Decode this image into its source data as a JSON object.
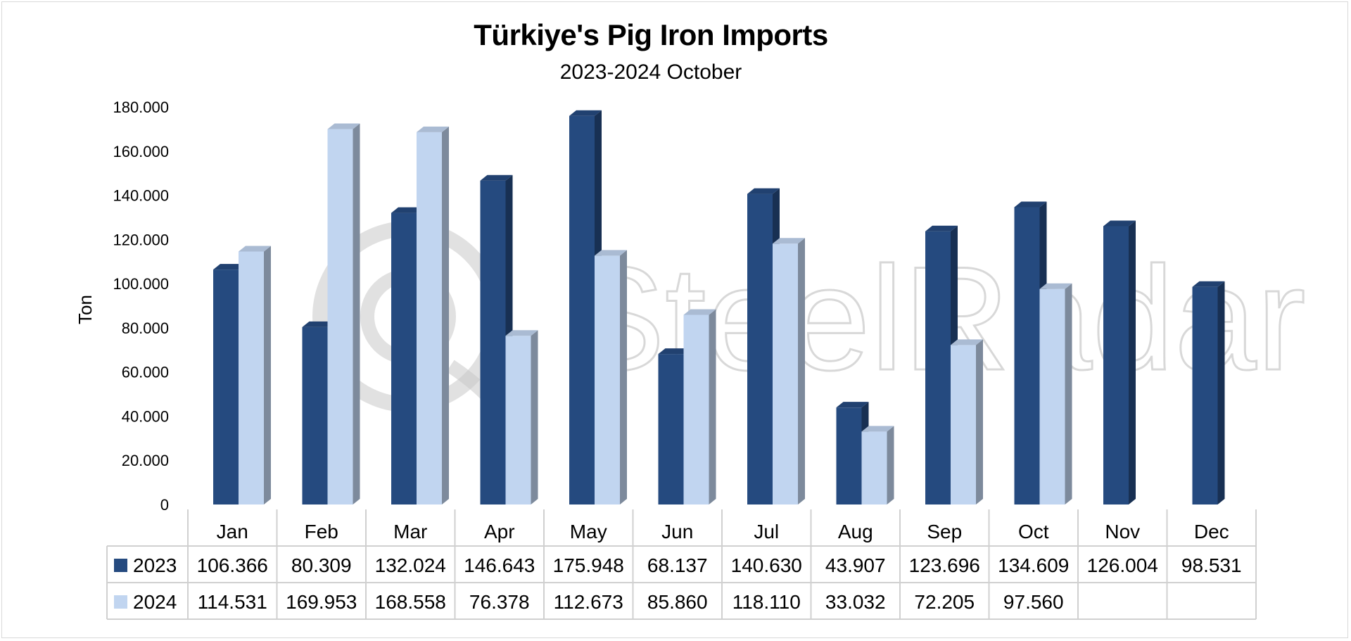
{
  "chart_data": {
    "type": "bar",
    "title": "Türkiye's Pig Iron Imports",
    "subtitle": "2023-2024 October",
    "ylabel": "Ton",
    "ylim": [
      0,
      180000
    ],
    "ytick_labels": [
      "0",
      "20.000",
      "40.000",
      "60.000",
      "80.000",
      "100.000",
      "120.000",
      "140.000",
      "160.000",
      "180.000"
    ],
    "ytick_values": [
      0,
      20000,
      40000,
      60000,
      80000,
      100000,
      120000,
      140000,
      160000,
      180000
    ],
    "categories": [
      "Jan",
      "Feb",
      "Mar",
      "Apr",
      "May",
      "Jun",
      "Jul",
      "Aug",
      "Sep",
      "Oct",
      "Nov",
      "Dec"
    ],
    "series": [
      {
        "name": "2023",
        "color": "#254a7f",
        "values": [
          106366,
          80309,
          132024,
          146643,
          175948,
          68137,
          140630,
          43907,
          123696,
          134609,
          126004,
          98531
        ],
        "labels": [
          "106.366",
          "80.309",
          "132.024",
          "146.643",
          "175.948",
          "68.137",
          "140.630",
          "43.907",
          "123.696",
          "134.609",
          "126.004",
          "98.531"
        ]
      },
      {
        "name": "2024",
        "color": "#c1d5f0",
        "values": [
          114531,
          169953,
          168558,
          76378,
          112673,
          85860,
          118110,
          33032,
          72205,
          97560,
          null,
          null
        ],
        "labels": [
          "114.531",
          "169.953",
          "168.558",
          "76.378",
          "112.673",
          "85.860",
          "118.110",
          "33.032",
          "72.205",
          "97.560",
          "",
          ""
        ]
      }
    ],
    "grid": false,
    "legend": "data-table"
  },
  "watermark": "SteelRadar"
}
